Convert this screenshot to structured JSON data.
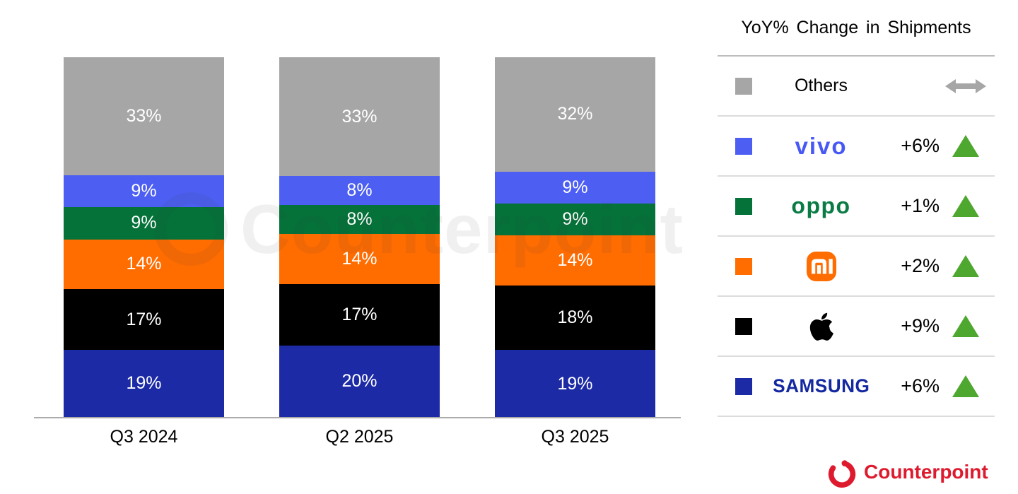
{
  "chart_data": {
    "type": "bar",
    "subtype": "stacked-percent-share",
    "title": "",
    "categories": [
      "Q3 2024",
      "Q2 2025",
      "Q3 2025"
    ],
    "series": [
      {
        "name": "Samsung",
        "color": "#1C2BA5",
        "values": [
          19,
          20,
          19
        ]
      },
      {
        "name": "Apple",
        "color": "#000000",
        "values": [
          17,
          17,
          18
        ]
      },
      {
        "name": "Xiaomi",
        "color": "#FF6C00",
        "values": [
          14,
          14,
          14
        ]
      },
      {
        "name": "OPPO",
        "color": "#047239",
        "values": [
          9,
          8,
          9
        ]
      },
      {
        "name": "vivo",
        "color": "#4C5FF2",
        "values": [
          9,
          8,
          9
        ]
      },
      {
        "name": "Others",
        "color": "#A6A6A6",
        "values": [
          33,
          33,
          32
        ]
      }
    ],
    "stack_order_top_to_bottom": [
      "Others",
      "vivo",
      "OPPO",
      "Xiaomi",
      "Apple",
      "Samsung"
    ],
    "value_suffix": "%",
    "data_labels": true,
    "data_label_color": "#FFFFFF",
    "grid": false,
    "legend_position": "right",
    "ylim": [
      0,
      100
    ]
  },
  "legend": {
    "title": "YoY% Change in Shipments",
    "up_triangle_color": "#4EA72E",
    "flat_arrow_color": "#A6A6A6",
    "rows": [
      {
        "brand": "Others",
        "swatch_color": "#A6A6A6",
        "logo_kind": "plain-text",
        "logo_text": "Others",
        "logo_color": "#000000",
        "change": "",
        "direction": "flat"
      },
      {
        "brand": "vivo",
        "swatch_color": "#4C5FF2",
        "logo_kind": "vivo",
        "logo_text": "vivo",
        "logo_color": "#4759F5",
        "change": "+6%",
        "direction": "up"
      },
      {
        "brand": "OPPO",
        "swatch_color": "#047239",
        "logo_kind": "oppo",
        "logo_text": "oppo",
        "logo_color": "#0A7B45",
        "change": "+1%",
        "direction": "up"
      },
      {
        "brand": "Xiaomi",
        "swatch_color": "#FF6C00",
        "logo_kind": "mi",
        "logo_text": "mi",
        "logo_color": "#FF6C00",
        "change": "+2%",
        "direction": "up"
      },
      {
        "brand": "Apple",
        "swatch_color": "#000000",
        "logo_kind": "apple",
        "logo_text": "",
        "logo_color": "#000000",
        "change": "+9%",
        "direction": "up"
      },
      {
        "brand": "Samsung",
        "swatch_color": "#1C2BA5",
        "logo_kind": "samsung",
        "logo_text": "SAMSUNG",
        "logo_color": "#1428A0",
        "change": "+6%",
        "direction": "up"
      }
    ]
  },
  "watermark": {
    "text": "Counterpoint"
  },
  "branding": {
    "logo_text": "Counterpoint",
    "color": "#DE1B2E"
  }
}
